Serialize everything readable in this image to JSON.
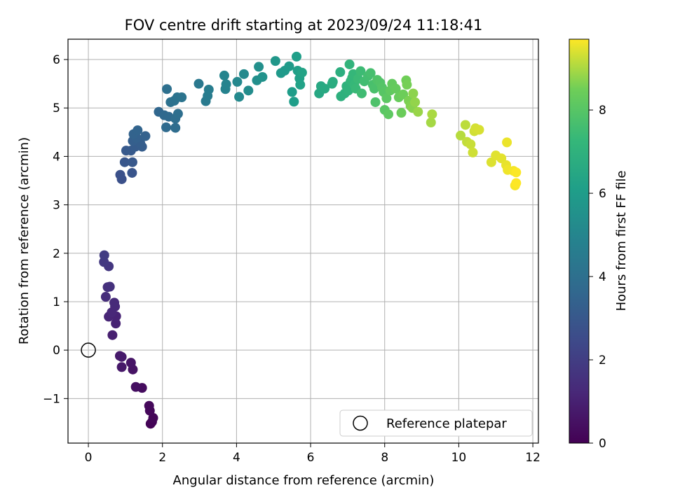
{
  "chart_data": {
    "type": "scatter",
    "title": "FOV centre drift starting at 2023/09/24 11:18:41",
    "xlabel": "Angular distance from reference (arcmin)",
    "ylabel": "Rotation from reference (arcmin)",
    "xlim": [
      -0.55,
      12.15
    ],
    "ylim": [
      -1.92,
      6.42
    ],
    "x_ticks": [
      0,
      2,
      4,
      6,
      8,
      10,
      12
    ],
    "y_ticks": [
      -1,
      0,
      1,
      2,
      3,
      4,
      5,
      6
    ],
    "x_tick_labels": [
      "0",
      "2",
      "4",
      "6",
      "8",
      "10",
      "12"
    ],
    "y_tick_labels": [
      "−1",
      "0",
      "1",
      "2",
      "3",
      "4",
      "5",
      "6"
    ],
    "grid": true,
    "legend": {
      "placement": "lower-right",
      "entries": [
        "Reference platepar"
      ]
    },
    "reference_point": {
      "x": 0,
      "y": 0
    },
    "colorbar": {
      "label": "Hours from first FF file",
      "min": 0,
      "max": 9.7,
      "ticks": [
        0,
        2,
        4,
        6,
        8
      ],
      "tick_labels": [
        "0",
        "2",
        "4",
        "6",
        "8"
      ],
      "colormap": "viridis"
    },
    "points": [
      [
        1.68,
        -1.52,
        0.05
      ],
      [
        1.72,
        -1.48,
        0.1
      ],
      [
        1.75,
        -1.4,
        0.15
      ],
      [
        1.66,
        -1.25,
        0.2
      ],
      [
        1.64,
        -1.15,
        0.25
      ],
      [
        1.45,
        -0.78,
        0.35
      ],
      [
        1.28,
        -0.76,
        0.45
      ],
      [
        1.2,
        -0.4,
        0.55
      ],
      [
        1.15,
        -0.26,
        0.6
      ],
      [
        0.9,
        -0.35,
        0.7
      ],
      [
        0.85,
        -0.12,
        0.75
      ],
      [
        0.9,
        -0.14,
        0.8
      ],
      [
        0.65,
        0.31,
        0.95
      ],
      [
        0.74,
        0.55,
        1.05
      ],
      [
        0.75,
        0.7,
        1.1
      ],
      [
        0.55,
        0.69,
        1.15
      ],
      [
        0.63,
        0.78,
        1.2
      ],
      [
        0.72,
        0.9,
        1.25
      ],
      [
        0.7,
        0.98,
        1.3
      ],
      [
        0.47,
        1.1,
        1.4
      ],
      [
        0.52,
        1.3,
        1.5
      ],
      [
        0.58,
        1.31,
        1.55
      ],
      [
        0.55,
        1.73,
        1.75
      ],
      [
        0.42,
        1.82,
        1.85
      ],
      [
        0.43,
        1.96,
        1.95
      ],
      [
        0.9,
        3.53,
        2.7
      ],
      [
        0.86,
        3.62,
        2.75
      ],
      [
        1.18,
        3.66,
        2.85
      ],
      [
        0.98,
        3.88,
        2.95
      ],
      [
        1.19,
        3.88,
        3.0
      ],
      [
        1.02,
        4.12,
        3.05
      ],
      [
        1.15,
        4.12,
        3.1
      ],
      [
        1.27,
        4.2,
        3.15
      ],
      [
        1.45,
        4.2,
        3.2
      ],
      [
        1.4,
        4.28,
        3.25
      ],
      [
        1.2,
        4.32,
        3.3
      ],
      [
        1.3,
        4.38,
        3.35
      ],
      [
        1.54,
        4.42,
        3.4
      ],
      [
        1.22,
        4.46,
        3.45
      ],
      [
        1.33,
        4.54,
        3.5
      ],
      [
        1.9,
        4.92,
        3.6
      ],
      [
        2.05,
        4.85,
        3.7
      ],
      [
        2.17,
        4.82,
        3.75
      ],
      [
        2.1,
        4.6,
        3.8
      ],
      [
        2.35,
        4.59,
        3.85
      ],
      [
        2.35,
        4.78,
        3.9
      ],
      [
        2.42,
        4.88,
        3.95
      ],
      [
        2.12,
        5.39,
        4.0
      ],
      [
        2.22,
        5.12,
        4.05
      ],
      [
        2.32,
        5.15,
        4.1
      ],
      [
        2.4,
        5.22,
        4.15
      ],
      [
        2.52,
        5.22,
        4.2
      ],
      [
        2.98,
        5.5,
        4.4
      ],
      [
        3.17,
        5.14,
        4.5
      ],
      [
        3.22,
        5.25,
        4.55
      ],
      [
        3.25,
        5.38,
        4.6
      ],
      [
        3.7,
        5.39,
        4.85
      ],
      [
        3.72,
        5.49,
        4.9
      ],
      [
        3.67,
        5.67,
        4.95
      ],
      [
        4.02,
        5.54,
        5.1
      ],
      [
        4.07,
        5.23,
        5.15
      ],
      [
        4.2,
        5.7,
        5.2
      ],
      [
        4.32,
        5.36,
        5.3
      ],
      [
        4.55,
        5.57,
        5.4
      ],
      [
        4.6,
        5.85,
        5.45
      ],
      [
        4.7,
        5.64,
        5.55
      ],
      [
        5.05,
        5.97,
        5.75
      ],
      [
        5.2,
        5.72,
        5.85
      ],
      [
        5.3,
        5.77,
        5.9
      ],
      [
        5.42,
        5.86,
        5.95
      ],
      [
        5.5,
        5.33,
        6.0
      ],
      [
        5.55,
        5.13,
        6.05
      ],
      [
        5.62,
        6.06,
        6.1
      ],
      [
        5.65,
        5.77,
        6.15
      ],
      [
        5.7,
        5.61,
        6.2
      ],
      [
        5.72,
        5.48,
        6.25
      ],
      [
        5.77,
        5.73,
        6.3
      ],
      [
        6.23,
        5.3,
        6.5
      ],
      [
        6.28,
        5.45,
        6.55
      ],
      [
        6.38,
        5.4,
        6.6
      ],
      [
        6.58,
        5.5,
        6.7
      ],
      [
        6.6,
        5.54,
        6.75
      ],
      [
        6.8,
        5.74,
        6.85
      ],
      [
        6.82,
        5.24,
        6.9
      ],
      [
        6.92,
        5.3,
        6.95
      ],
      [
        6.97,
        5.45,
        7.0
      ],
      [
        7.02,
        5.36,
        7.05
      ],
      [
        7.05,
        5.9,
        7.1
      ],
      [
        7.08,
        5.55,
        7.15
      ],
      [
        7.12,
        5.62,
        7.2
      ],
      [
        7.15,
        5.7,
        7.25
      ],
      [
        7.18,
        5.48,
        7.3
      ],
      [
        7.22,
        5.4,
        7.35
      ],
      [
        7.28,
        5.6,
        7.4
      ],
      [
        7.35,
        5.76,
        7.45
      ],
      [
        7.38,
        5.3,
        7.5
      ],
      [
        7.45,
        5.55,
        7.55
      ],
      [
        7.55,
        5.66,
        7.6
      ],
      [
        7.62,
        5.72,
        7.65
      ],
      [
        7.68,
        5.48,
        7.7
      ],
      [
        7.72,
        5.4,
        7.75
      ],
      [
        7.75,
        5.12,
        7.8
      ],
      [
        7.8,
        5.58,
        7.85
      ],
      [
        7.88,
        5.52,
        7.9
      ],
      [
        7.93,
        5.42,
        7.95
      ],
      [
        7.97,
        5.33,
        8.0
      ],
      [
        8.0,
        4.96,
        8.05
      ],
      [
        8.05,
        5.2,
        8.1
      ],
      [
        8.1,
        4.87,
        8.15
      ],
      [
        8.15,
        5.36,
        8.2
      ],
      [
        8.2,
        5.5,
        8.25
      ],
      [
        8.3,
        5.4,
        8.3
      ],
      [
        8.38,
        5.22,
        8.35
      ],
      [
        8.45,
        4.9,
        8.4
      ],
      [
        8.5,
        5.28,
        8.45
      ],
      [
        8.58,
        5.57,
        8.5
      ],
      [
        8.6,
        5.48,
        8.55
      ],
      [
        8.65,
        5.15,
        8.6
      ],
      [
        8.7,
        5.04,
        8.65
      ],
      [
        8.75,
        5.0,
        8.7
      ],
      [
        8.77,
        5.3,
        8.75
      ],
      [
        8.82,
        5.12,
        8.8
      ],
      [
        8.9,
        4.92,
        8.85
      ],
      [
        9.25,
        4.7,
        8.95
      ],
      [
        9.28,
        4.87,
        9.0
      ],
      [
        10.05,
        4.43,
        9.1
      ],
      [
        10.18,
        4.65,
        9.15
      ],
      [
        10.22,
        4.3,
        9.2
      ],
      [
        10.32,
        4.25,
        9.25
      ],
      [
        10.38,
        4.08,
        9.3
      ],
      [
        10.42,
        4.52,
        9.32
      ],
      [
        10.45,
        4.58,
        9.35
      ],
      [
        10.55,
        4.55,
        9.38
      ],
      [
        10.88,
        3.88,
        9.42
      ],
      [
        11.0,
        4.02,
        9.45
      ],
      [
        11.15,
        3.96,
        9.48
      ],
      [
        11.28,
        3.82,
        9.52
      ],
      [
        11.3,
        4.29,
        9.55
      ],
      [
        11.32,
        3.72,
        9.58
      ],
      [
        11.48,
        3.7,
        9.62
      ],
      [
        11.52,
        3.4,
        9.65
      ],
      [
        11.55,
        3.67,
        9.68
      ],
      [
        11.55,
        3.45,
        9.7
      ]
    ]
  }
}
